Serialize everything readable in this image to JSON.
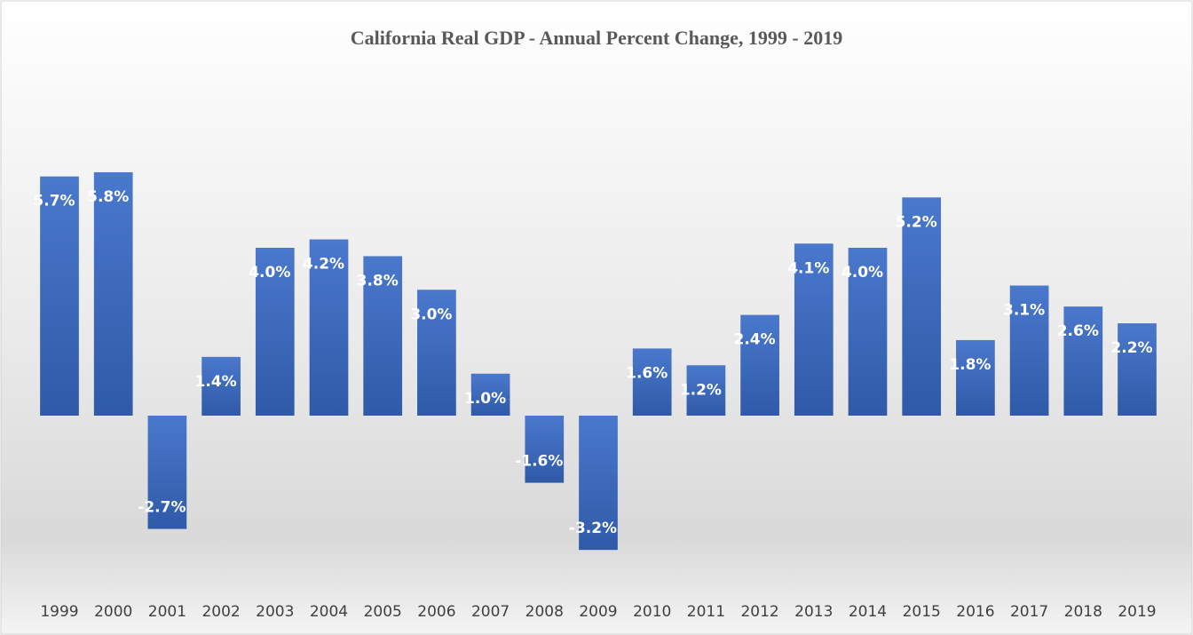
{
  "chart_data": {
    "type": "bar",
    "title": "California Real GDP - Annual Percent Change, 1999 - 2019",
    "categories": [
      "1999",
      "2000",
      "2001",
      "2002",
      "2003",
      "2004",
      "2005",
      "2006",
      "2007",
      "2008",
      "2009",
      "2010",
      "2011",
      "2012",
      "2013",
      "2014",
      "2015",
      "2016",
      "2017",
      "2018",
      "2019"
    ],
    "values": [
      5.7,
      5.8,
      -2.7,
      1.4,
      4.0,
      4.2,
      3.8,
      3.0,
      1.0,
      -1.6,
      -3.2,
      1.6,
      1.2,
      2.4,
      4.1,
      4.0,
      5.2,
      1.8,
      3.1,
      2.6,
      2.2
    ],
    "value_labels": [
      "5.7%",
      "5.8%",
      "-2.7%",
      "1.4%",
      "4.0%",
      "4.2%",
      "3.8%",
      "3.0%",
      "1.0%",
      "-1.6%",
      "-3.2%",
      "1.6%",
      "1.2%",
      "2.4%",
      "4.1%",
      "4.0%",
      "5.2%",
      "1.8%",
      "3.1%",
      "2.6%",
      "2.2%"
    ],
    "color": "#4472c4",
    "ylim": [
      -4,
      8
    ]
  }
}
